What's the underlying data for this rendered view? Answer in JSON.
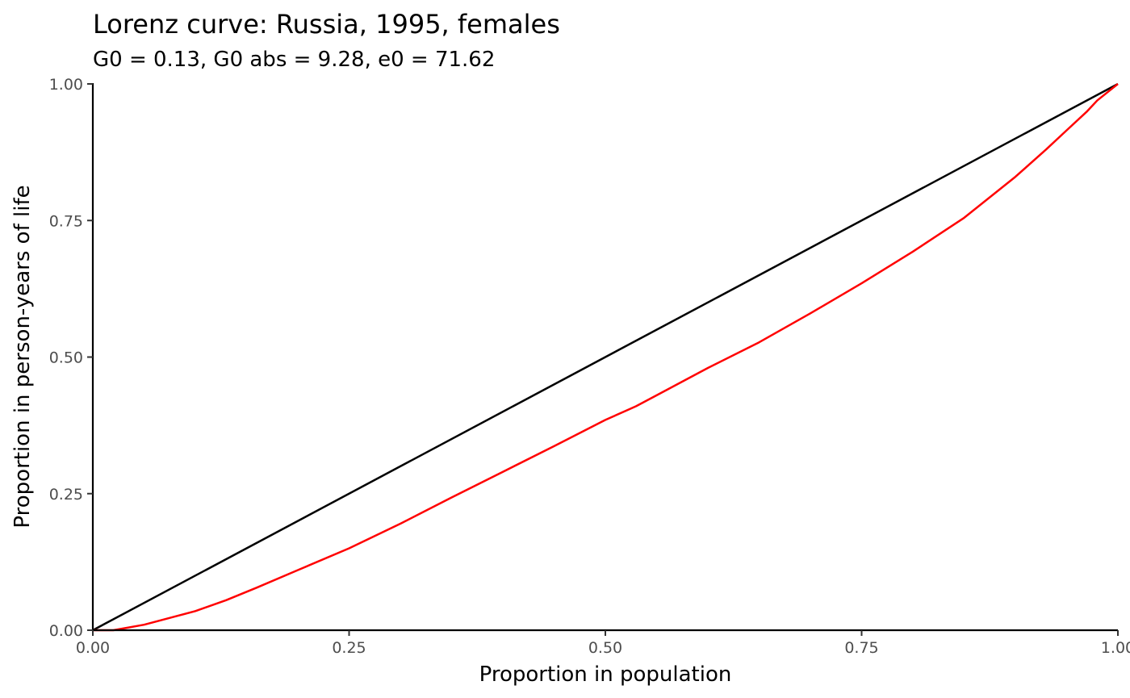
{
  "chart_data": {
    "type": "line",
    "title": "Lorenz curve: Russia, 1995, females",
    "subtitle": "G0 = 0.13, G0 abs = 9.28, e0 = 71.62",
    "xlabel": "Proportion in population",
    "ylabel": "Proportion in person-years of life",
    "xlim": [
      0,
      1
    ],
    "ylim": [
      0,
      1
    ],
    "x_ticks": [
      "0.00",
      "0.25",
      "0.50",
      "0.75",
      "1.00"
    ],
    "y_ticks": [
      "0.00",
      "0.25",
      "0.50",
      "0.75",
      "1.00"
    ],
    "grid": false,
    "series": [
      {
        "color": "#000000",
        "x": [
          0,
          1
        ],
        "y": [
          0,
          1
        ]
      },
      {
        "color": "#ff0000",
        "x": [
          0,
          0.02,
          0.05,
          0.08,
          0.1,
          0.13,
          0.16,
          0.2,
          0.25,
          0.3,
          0.35,
          0.4,
          0.45,
          0.5,
          0.53,
          0.55,
          0.6,
          0.65,
          0.7,
          0.75,
          0.8,
          0.85,
          0.9,
          0.93,
          0.95,
          0.97,
          0.98,
          0.99,
          1.0
        ],
        "y": [
          0,
          0,
          0.01,
          0.025,
          0.035,
          0.055,
          0.078,
          0.11,
          0.15,
          0.195,
          0.243,
          0.29,
          0.337,
          0.385,
          0.41,
          0.43,
          0.48,
          0.527,
          0.58,
          0.635,
          0.693,
          0.755,
          0.83,
          0.88,
          0.915,
          0.95,
          0.97,
          0.985,
          1.0
        ]
      }
    ]
  }
}
